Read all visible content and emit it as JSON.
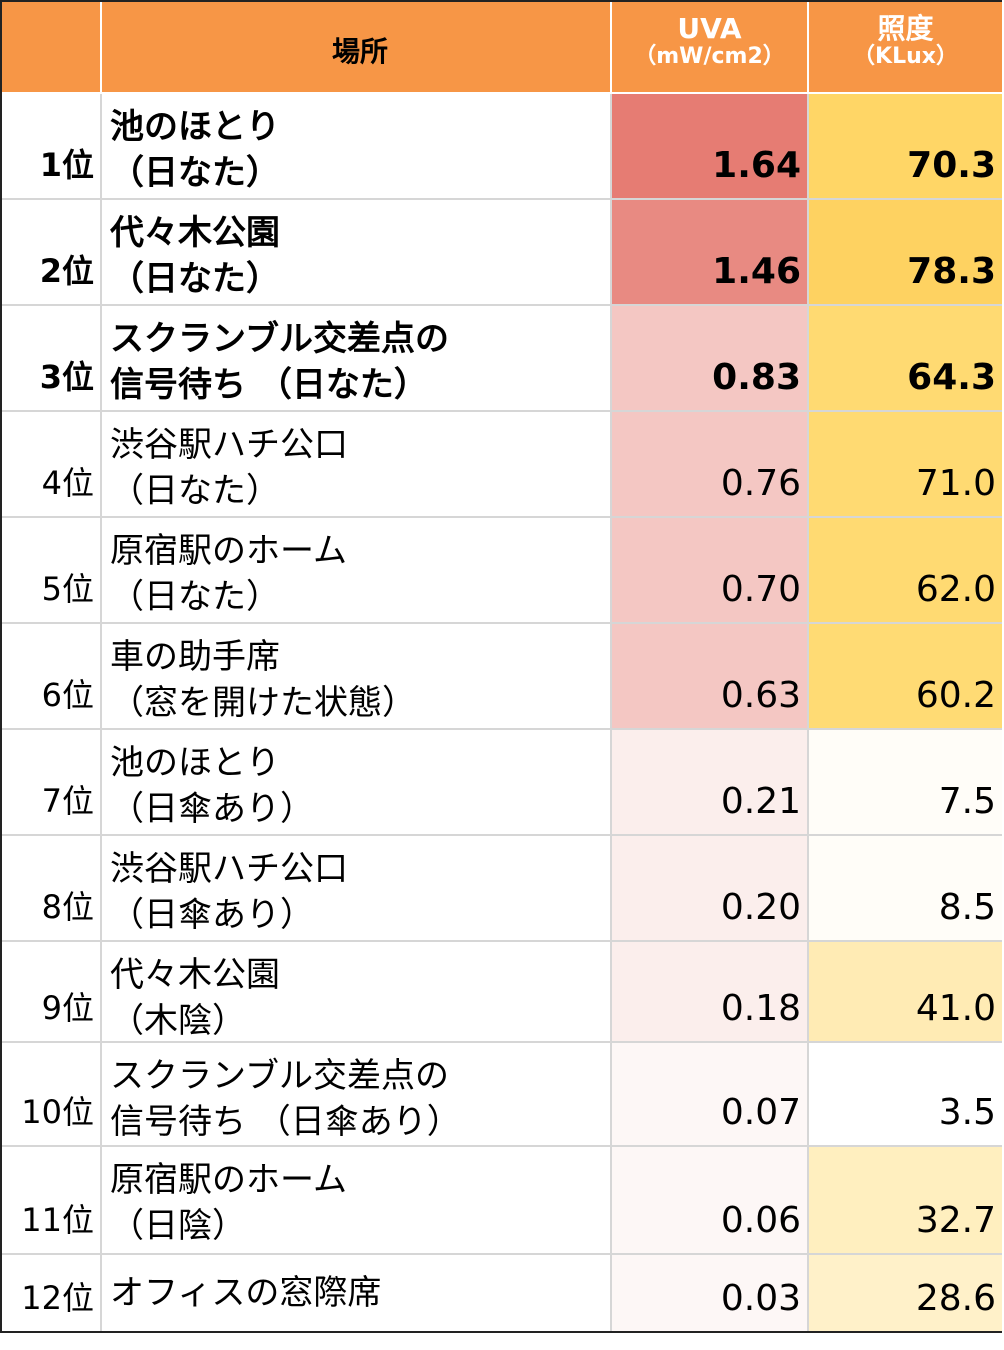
{
  "headers": {
    "place": "場所",
    "uva_main": "UVA",
    "uva_unit": "（mW/cm2）",
    "lux_main": "照度",
    "lux_unit": "（KLux）"
  },
  "colors": {
    "header": "#f79646",
    "uva_high": "#e67c73",
    "lux_high": "#ffd666"
  },
  "rows": [
    {
      "rank": "1位",
      "line1": "池のほとり",
      "line2": "（日なた）",
      "uva": "1.64",
      "lux": "70.3"
    },
    {
      "rank": "2位",
      "line1": "代々木公園",
      "line2": "（日なた）",
      "uva": "1.46",
      "lux": "78.3"
    },
    {
      "rank": "3位",
      "line1": "スクランブル交差点の",
      "line2": "信号待ち （日なた）",
      "uva": "0.83",
      "lux": "64.3"
    },
    {
      "rank": "4位",
      "line1": "渋谷駅ハチ公口",
      "line2": "（日なた）",
      "uva": "0.76",
      "lux": "71.0"
    },
    {
      "rank": "5位",
      "line1": "原宿駅のホーム",
      "line2": "（日なた）",
      "uva": "0.70",
      "lux": "62.0"
    },
    {
      "rank": "6位",
      "line1": "車の助手席",
      "line2": "（窓を開けた状態）",
      "uva": "0.63",
      "lux": "60.2"
    },
    {
      "rank": "7位",
      "line1": "池のほとり",
      "line2": "（日傘あり）",
      "uva": "0.21",
      "lux": "7.5"
    },
    {
      "rank": "8位",
      "line1": "渋谷駅ハチ公口",
      "line2": "（日傘あり）",
      "uva": "0.20",
      "lux": "8.5"
    },
    {
      "rank": "9位",
      "line1": "代々木公園",
      "line2": "（木陰）",
      "uva": "0.18",
      "lux": "41.0"
    },
    {
      "rank": "10位",
      "line1": "スクランブル交差点の",
      "line2": "信号待ち （日傘あり）",
      "uva": "0.07",
      "lux": "3.5"
    },
    {
      "rank": "11位",
      "line1": "原宿駅のホーム",
      "line2": "（日陰）",
      "uva": "0.06",
      "lux": "32.7"
    },
    {
      "rank": "12位",
      "line1": "オフィスの窓際席",
      "line2": "",
      "uva": "0.03",
      "lux": "28.6"
    }
  ]
}
